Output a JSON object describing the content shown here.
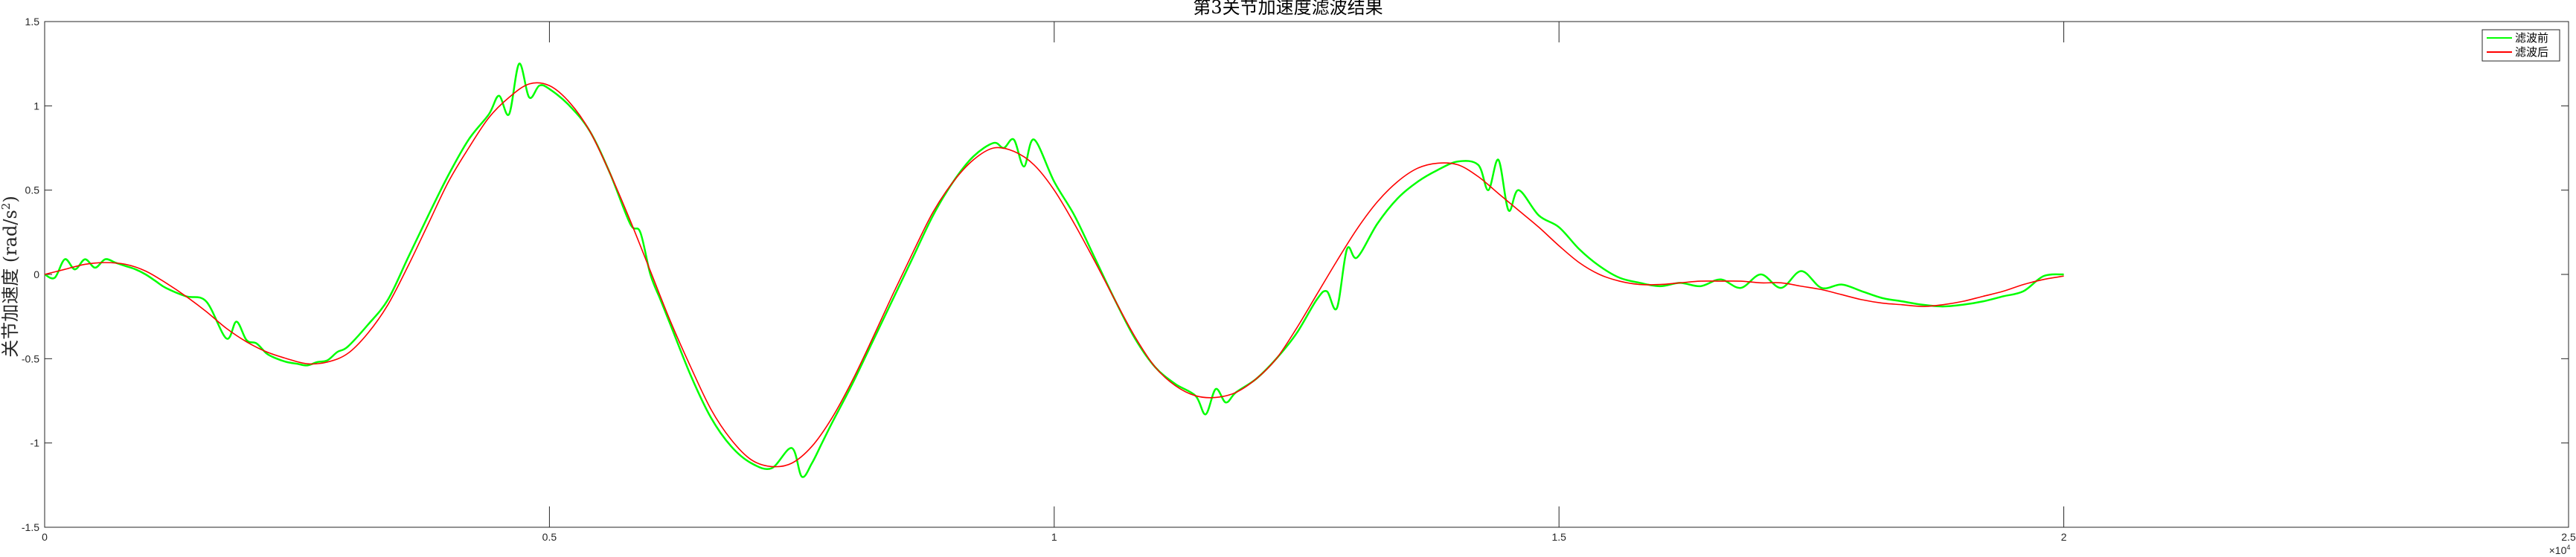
{
  "chart_data": {
    "type": "line",
    "title": "第3关节加速度滤波结果",
    "ylabel": "关节加速度 (rad/s",
    "ylabel_sup": "2",
    "ylabel_close": ")",
    "xlabel": "",
    "x_multiplier_label": "×10",
    "x_multiplier_exp": "4",
    "xlim": [
      0,
      25000
    ],
    "ylim": [
      -1.5,
      1.5
    ],
    "xticks": [
      0,
      5000,
      10000,
      15000,
      20000,
      25000
    ],
    "xtick_labels": [
      "0",
      "0.5",
      "1",
      "1.5",
      "2",
      "2.5"
    ],
    "yticks": [
      -1.5,
      -1,
      -0.5,
      0,
      0.5,
      1,
      1.5
    ],
    "ytick_labels": [
      "-1.5",
      "-1",
      "-0.5",
      "0",
      "0.5",
      "1",
      "1.5"
    ],
    "grid": false,
    "legend_position": "top-right",
    "series": [
      {
        "name": "滤波前",
        "color": "#00ff00",
        "x": [
          0,
          100,
          200,
          300,
          400,
          500,
          600,
          700,
          800,
          900,
          1000,
          1100,
          1200,
          1400,
          1600,
          1800,
          1900,
          2000,
          2100,
          2200,
          2300,
          2400,
          2500,
          2600,
          2700,
          2800,
          2900,
          3000,
          3200,
          3400,
          3600,
          3800,
          4000,
          4200,
          4400,
          4500,
          4600,
          4700,
          4800,
          4900,
          5000,
          5200,
          5400,
          5600,
          5800,
          5900,
          6000,
          6100,
          6200,
          6400,
          6600,
          6800,
          7000,
          7200,
          7400,
          7500,
          7600,
          7700,
          7800,
          8000,
          8200,
          8400,
          8600,
          8800,
          9000,
          9200,
          9400,
          9500,
          9600,
          9700,
          9800,
          10000,
          10200,
          10400,
          10600,
          10800,
          11000,
          11200,
          11400,
          11500,
          11600,
          11700,
          11800,
          12000,
          12200,
          12400,
          12600,
          12700,
          12800,
          12900,
          13000,
          13200,
          13400,
          13600,
          13800,
          14000,
          14200,
          14300,
          14400,
          14500,
          14600,
          14800,
          15000,
          15200,
          15400,
          15600,
          15800,
          16000,
          16200,
          16400,
          16600,
          16800,
          17000,
          17200,
          17400,
          17600,
          17800,
          18000,
          18200,
          18400,
          18600,
          18800,
          19000,
          19200,
          19400,
          19600,
          19800,
          20000
        ],
        "y": [
          0.0,
          -0.02,
          0.09,
          0.03,
          0.09,
          0.04,
          0.09,
          0.07,
          0.05,
          0.03,
          0.0,
          -0.04,
          -0.08,
          -0.13,
          -0.16,
          -0.38,
          -0.28,
          -0.39,
          -0.41,
          -0.47,
          -0.5,
          -0.52,
          -0.53,
          -0.54,
          -0.52,
          -0.51,
          -0.46,
          -0.43,
          -0.3,
          -0.15,
          0.1,
          0.35,
          0.59,
          0.8,
          0.95,
          1.06,
          0.95,
          1.25,
          1.05,
          1.12,
          1.1,
          1.0,
          0.85,
          0.6,
          0.3,
          0.25,
          0.0,
          -0.15,
          -0.3,
          -0.6,
          -0.85,
          -1.02,
          -1.12,
          -1.15,
          -1.03,
          -1.2,
          -1.12,
          -1.0,
          -0.88,
          -0.65,
          -0.4,
          -0.15,
          0.1,
          0.35,
          0.55,
          0.7,
          0.78,
          0.75,
          0.8,
          0.64,
          0.8,
          0.55,
          0.35,
          0.1,
          -0.15,
          -0.38,
          -0.55,
          -0.65,
          -0.72,
          -0.83,
          -0.68,
          -0.76,
          -0.7,
          -0.62,
          -0.5,
          -0.35,
          -0.15,
          -0.1,
          -0.2,
          0.15,
          0.1,
          0.3,
          0.45,
          0.55,
          0.62,
          0.67,
          0.65,
          0.5,
          0.68,
          0.38,
          0.5,
          0.35,
          0.28,
          0.15,
          0.05,
          -0.02,
          -0.05,
          -0.07,
          -0.05,
          -0.07,
          -0.03,
          -0.08,
          -0.0,
          -0.08,
          0.02,
          -0.08,
          -0.06,
          -0.1,
          -0.14,
          -0.16,
          -0.18,
          -0.19,
          -0.18,
          -0.16,
          -0.13,
          -0.1,
          -0.01,
          0.0
        ]
      },
      {
        "name": "滤波后",
        "color": "#ff0000",
        "x": [
          0,
          200,
          400,
          600,
          800,
          1000,
          1200,
          1400,
          1600,
          1800,
          2000,
          2200,
          2400,
          2600,
          2800,
          3000,
          3200,
          3400,
          3600,
          3800,
          4000,
          4200,
          4400,
          4600,
          4800,
          5000,
          5200,
          5400,
          5600,
          5800,
          6000,
          6200,
          6400,
          6600,
          6800,
          7000,
          7200,
          7400,
          7600,
          7800,
          8000,
          8200,
          8400,
          8600,
          8800,
          9000,
          9200,
          9400,
          9600,
          9800,
          10000,
          10200,
          10400,
          10600,
          10800,
          11000,
          11200,
          11400,
          11600,
          11800,
          12000,
          12200,
          12400,
          12600,
          12800,
          13000,
          13200,
          13400,
          13600,
          13800,
          14000,
          14200,
          14400,
          14600,
          14800,
          15000,
          15200,
          15400,
          15600,
          15800,
          16000,
          16200,
          16400,
          16600,
          16800,
          17000,
          17200,
          17400,
          17600,
          17800,
          18000,
          18200,
          18400,
          18600,
          18800,
          19000,
          19200,
          19400,
          19600,
          19800,
          20000
        ],
        "y": [
          0.0,
          0.03,
          0.06,
          0.07,
          0.06,
          0.02,
          -0.05,
          -0.13,
          -0.22,
          -0.32,
          -0.4,
          -0.46,
          -0.5,
          -0.53,
          -0.52,
          -0.47,
          -0.35,
          -0.18,
          0.05,
          0.3,
          0.55,
          0.75,
          0.93,
          1.05,
          1.13,
          1.12,
          1.02,
          0.85,
          0.6,
          0.32,
          0.02,
          -0.28,
          -0.55,
          -0.8,
          -0.98,
          -1.1,
          -1.14,
          -1.12,
          -1.02,
          -0.85,
          -0.63,
          -0.38,
          -0.12,
          0.13,
          0.37,
          0.55,
          0.68,
          0.75,
          0.73,
          0.65,
          0.5,
          0.3,
          0.08,
          -0.15,
          -0.37,
          -0.55,
          -0.66,
          -0.72,
          -0.73,
          -0.7,
          -0.62,
          -0.5,
          -0.32,
          -0.12,
          0.08,
          0.27,
          0.43,
          0.55,
          0.63,
          0.66,
          0.65,
          0.58,
          0.48,
          0.38,
          0.28,
          0.17,
          0.07,
          0.0,
          -0.04,
          -0.06,
          -0.06,
          -0.05,
          -0.04,
          -0.04,
          -0.04,
          -0.05,
          -0.05,
          -0.07,
          -0.09,
          -0.12,
          -0.15,
          -0.17,
          -0.18,
          -0.19,
          -0.18,
          -0.16,
          -0.13,
          -0.1,
          -0.06,
          -0.03,
          -0.01
        ]
      }
    ]
  }
}
